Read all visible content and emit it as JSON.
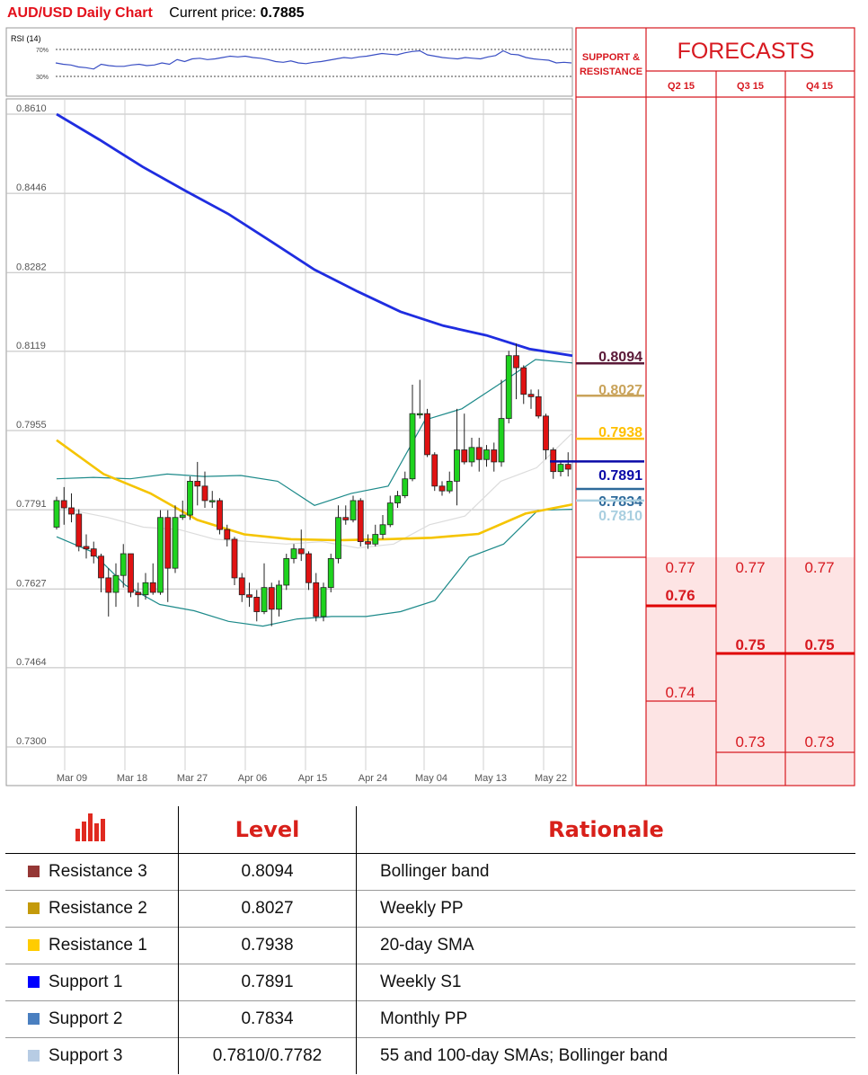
{
  "header": {
    "title": "AUD/USD Daily Chart",
    "current_price_label": "Current price:",
    "current_price": "0.7885"
  },
  "chart_data": {
    "type": "candlestick",
    "title": "AUD/USD Daily Chart",
    "rsi": {
      "label": "RSI (14)",
      "levels": [
        "70%",
        "30%"
      ],
      "values": [
        50,
        48,
        47,
        44,
        43,
        41,
        48,
        46,
        45,
        45,
        47,
        48,
        46,
        47,
        50,
        48,
        55,
        52,
        56,
        57,
        55,
        56,
        58,
        60,
        59,
        60,
        58,
        57,
        55,
        52,
        51,
        53,
        50,
        49,
        51,
        52,
        54,
        56,
        58,
        57,
        59,
        60,
        62,
        64,
        63,
        62,
        65,
        67,
        68,
        62,
        60,
        58,
        57,
        56,
        58,
        57,
        56,
        59,
        61,
        68,
        63,
        62,
        58,
        56,
        55,
        54,
        50,
        51,
        50
      ]
    },
    "ylim": [
      0.73,
      0.8624
    ],
    "y_ticks": [
      "0.8610",
      "0.8446",
      "0.8282",
      "0.8119",
      "0.7955",
      "0.7791",
      "0.7627",
      "0.7464",
      "0.7300"
    ],
    "x_ticks": [
      "Mar 09",
      "Mar 18",
      "Mar 27",
      "Apr 06",
      "Apr 15",
      "Apr 24",
      "May 04",
      "May 13",
      "May 22"
    ],
    "candles": [
      [
        0.7755,
        0.781,
        0.7818,
        0.775
      ],
      [
        0.781,
        0.7795,
        0.7838,
        0.776
      ],
      [
        0.7795,
        0.7782,
        0.7825,
        0.7765
      ],
      [
        0.7782,
        0.7715,
        0.7792,
        0.7705
      ],
      [
        0.7715,
        0.771,
        0.774,
        0.769
      ],
      [
        0.771,
        0.7695,
        0.7725,
        0.768
      ],
      [
        0.7695,
        0.765,
        0.77,
        0.762
      ],
      [
        0.765,
        0.762,
        0.767,
        0.757
      ],
      [
        0.762,
        0.7655,
        0.768,
        0.759
      ],
      [
        0.7655,
        0.77,
        0.772,
        0.763
      ],
      [
        0.77,
        0.762,
        0.77,
        0.761
      ],
      [
        0.762,
        0.7615,
        0.764,
        0.759
      ],
      [
        0.7615,
        0.764,
        0.766,
        0.7605
      ],
      [
        0.764,
        0.762,
        0.768,
        0.7615
      ],
      [
        0.762,
        0.7775,
        0.779,
        0.7615
      ],
      [
        0.7775,
        0.767,
        0.779,
        0.76
      ],
      [
        0.767,
        0.7775,
        0.78,
        0.766
      ],
      [
        0.7775,
        0.778,
        0.781,
        0.777
      ],
      [
        0.778,
        0.785,
        0.786,
        0.777
      ],
      [
        0.785,
        0.784,
        0.789,
        0.78
      ],
      [
        0.784,
        0.781,
        0.787,
        0.7795
      ],
      [
        0.781,
        0.781,
        0.783,
        0.7795
      ],
      [
        0.781,
        0.775,
        0.7815,
        0.774
      ],
      [
        0.775,
        0.773,
        0.776,
        0.7715
      ],
      [
        0.773,
        0.765,
        0.7735,
        0.7635
      ],
      [
        0.765,
        0.7615,
        0.766,
        0.76
      ],
      [
        0.7615,
        0.761,
        0.764,
        0.759
      ],
      [
        0.761,
        0.758,
        0.7625,
        0.756
      ],
      [
        0.758,
        0.763,
        0.768,
        0.7575
      ],
      [
        0.763,
        0.7585,
        0.764,
        0.755
      ],
      [
        0.7585,
        0.7635,
        0.7645,
        0.757
      ],
      [
        0.7635,
        0.769,
        0.77,
        0.7625
      ],
      [
        0.769,
        0.771,
        0.772,
        0.768
      ],
      [
        0.771,
        0.77,
        0.775,
        0.7685
      ],
      [
        0.77,
        0.764,
        0.7705,
        0.7625
      ],
      [
        0.764,
        0.757,
        0.766,
        0.756
      ],
      [
        0.757,
        0.763,
        0.764,
        0.756
      ],
      [
        0.763,
        0.769,
        0.77,
        0.762
      ],
      [
        0.769,
        0.7775,
        0.78,
        0.768
      ],
      [
        0.7775,
        0.777,
        0.78,
        0.776
      ],
      [
        0.777,
        0.781,
        0.782,
        0.7765
      ],
      [
        0.781,
        0.7725,
        0.7815,
        0.7715
      ],
      [
        0.7725,
        0.772,
        0.774,
        0.771
      ],
      [
        0.772,
        0.774,
        0.776,
        0.7715
      ],
      [
        0.774,
        0.776,
        0.778,
        0.773
      ],
      [
        0.776,
        0.7805,
        0.782,
        0.7755
      ],
      [
        0.7805,
        0.782,
        0.783,
        0.7795
      ],
      [
        0.782,
        0.7855,
        0.787,
        0.7815
      ],
      [
        0.7855,
        0.799,
        0.805,
        0.785
      ],
      [
        0.799,
        0.799,
        0.806,
        0.798
      ],
      [
        0.799,
        0.7905,
        0.8,
        0.79
      ],
      [
        0.7905,
        0.784,
        0.791,
        0.783
      ],
      [
        0.784,
        0.783,
        0.785,
        0.782
      ],
      [
        0.783,
        0.785,
        0.787,
        0.7825
      ],
      [
        0.785,
        0.7915,
        0.8,
        0.78
      ],
      [
        0.7915,
        0.789,
        0.799,
        0.7885
      ],
      [
        0.789,
        0.792,
        0.794,
        0.788
      ],
      [
        0.792,
        0.7895,
        0.794,
        0.787
      ],
      [
        0.7895,
        0.7915,
        0.7925,
        0.788
      ],
      [
        0.7915,
        0.789,
        0.793,
        0.787
      ],
      [
        0.789,
        0.798,
        0.806,
        0.788
      ],
      [
        0.798,
        0.811,
        0.812,
        0.797
      ],
      [
        0.811,
        0.8085,
        0.8135,
        0.802
      ],
      [
        0.8085,
        0.803,
        0.809,
        0.801
      ],
      [
        0.803,
        0.8025,
        0.804,
        0.8
      ],
      [
        0.8025,
        0.7985,
        0.804,
        0.798
      ],
      [
        0.7985,
        0.7915,
        0.799,
        0.7895
      ],
      [
        0.7915,
        0.787,
        0.792,
        0.7855
      ],
      [
        0.787,
        0.7885,
        0.789,
        0.786
      ],
      [
        0.7885,
        0.7875,
        0.791,
        0.786
      ]
    ],
    "ma_blue": [
      0.861,
      0.8557,
      0.8501,
      0.8451,
      0.8403,
      0.8346,
      0.8288,
      0.8243,
      0.8201,
      0.8172,
      0.8152,
      0.8124,
      0.811
    ],
    "ma_yellow": [
      0.7935,
      0.7865,
      0.7825,
      0.777,
      0.774,
      0.773,
      0.7728,
      0.773,
      0.7733,
      0.7741,
      0.7783,
      0.7802
    ],
    "bb_upper": [
      0.7855,
      0.7858,
      0.7855,
      0.7865,
      0.786,
      0.7862,
      0.785,
      0.78,
      0.7825,
      0.784,
      0.7977,
      0.8,
      0.805,
      0.8102,
      0.8095
    ],
    "bb_lower": [
      0.7735,
      0.7705,
      0.7635,
      0.7595,
      0.7582,
      0.756,
      0.755,
      0.7565,
      0.757,
      0.757,
      0.758,
      0.7603,
      0.7693,
      0.772,
      0.779,
      0.7792
    ],
    "sma_gray": [
      0.779,
      0.7775,
      0.7755,
      0.775,
      0.773,
      0.7725,
      0.772,
      0.7725,
      0.7712,
      0.772,
      0.776,
      0.7778,
      0.785,
      0.7878,
      0.795
    ],
    "levels": [
      {
        "value": 0.8094,
        "label": "0.8094",
        "color": "#5b1a38"
      },
      {
        "value": 0.8027,
        "label": "0.8027",
        "color": "#c9a35a"
      },
      {
        "value": 0.7938,
        "label": "0.7938",
        "color": "#ffc000"
      },
      {
        "value": 0.7891,
        "label": "0.7891",
        "color": "#0a0aa8"
      },
      {
        "value": 0.7834,
        "label": "0.7834",
        "color": "#2e6a9a"
      },
      {
        "value": 0.781,
        "label": "0.7810",
        "color": "#a9cfe0"
      }
    ]
  },
  "forecast_panel": {
    "sr_label_1": "SUPPORT &",
    "sr_label_2": "RESISTANCE",
    "title": "FORECASTS",
    "columns": [
      "Q2 15",
      "Q3 15",
      "Q4 15"
    ],
    "values": {
      "q2": [
        "0.77",
        "0.76",
        "0.74"
      ],
      "q3": [
        "0.77",
        "0.75",
        "0.73"
      ],
      "q4": [
        "0.77",
        "0.75",
        "0.73"
      ]
    }
  },
  "table": {
    "headers": {
      "level": "Level",
      "rationale": "Rationale"
    },
    "rows": [
      {
        "name": "Resistance 3",
        "level": "0.8094",
        "rationale": "Bollinger band",
        "color": "#953735"
      },
      {
        "name": "Resistance 2",
        "level": "0.8027",
        "rationale": "Weekly PP",
        "color": "#c49a0b"
      },
      {
        "name": "Resistance 1",
        "level": "0.7938",
        "rationale": "20-day SMA",
        "color": "#ffcc00"
      },
      {
        "name": "Support 1",
        "level": "0.7891",
        "rationale": "Weekly S1",
        "color": "#0000ff"
      },
      {
        "name": "Support 2",
        "level": "0.7834",
        "rationale": "Monthly PP",
        "color": "#4a7fc0"
      },
      {
        "name": "Support 3",
        "level": "0.7810/0.7782",
        "rationale": "55 and 100-day SMAs; Bollinger band",
        "color": "#b7cce4"
      }
    ]
  }
}
